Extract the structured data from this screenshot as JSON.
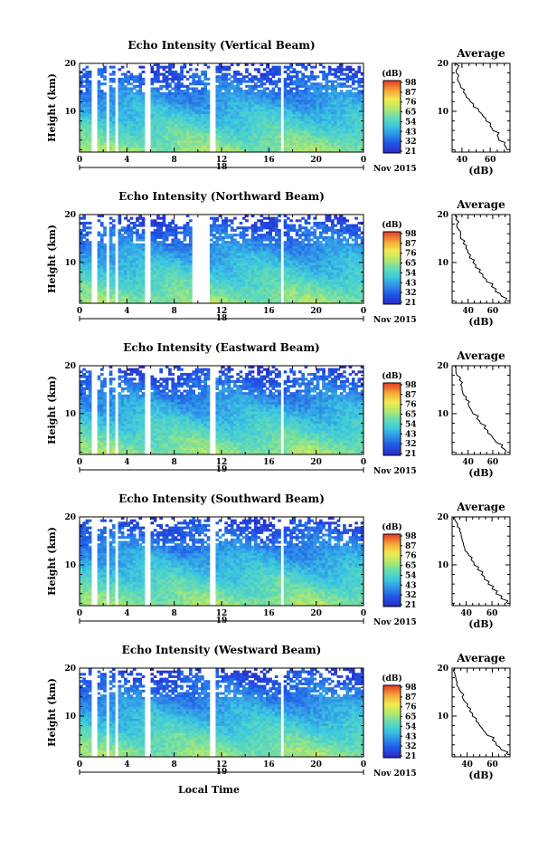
{
  "chart_data": [
    {
      "type": "heatmap",
      "title": "Echo Intensity (Vertical Beam)",
      "ylabel": "Height (km)",
      "xlim": [
        0,
        24
      ],
      "ylim": [
        1.5,
        20
      ],
      "x_ticks": [
        "0",
        "4",
        "8",
        "12",
        "16",
        "20",
        "0"
      ],
      "y_ticks": [
        "20",
        "10"
      ],
      "date_marker": "18",
      "date_label": "Nov 2015",
      "colorbar": {
        "unit": "(dB)",
        "ticks": [
          "98",
          "87",
          "76",
          "65",
          "54",
          "43",
          "32",
          "21"
        ]
      },
      "average_profile": {
        "title": "Average",
        "xlabel": "(dB)",
        "x_ticks": [
          "40",
          "60"
        ],
        "y_ticks": [
          "20",
          "10"
        ],
        "xlim": [
          33,
          74
        ],
        "ylim": [
          1.5,
          20
        ],
        "heights": [
          2,
          3,
          4,
          5,
          6,
          7,
          8,
          9,
          10,
          11,
          12,
          13,
          14,
          15,
          16,
          17,
          18,
          19,
          20
        ],
        "values": [
          72,
          70,
          66,
          65,
          62,
          60,
          57,
          55,
          52,
          48,
          46,
          43,
          41,
          39,
          38,
          37,
          36,
          37,
          35
        ]
      },
      "data_gaps_hours": [
        [
          1.0,
          1.4
        ],
        [
          2.2,
          2.6
        ],
        [
          3.0,
          3.3
        ],
        [
          5.5,
          5.9
        ],
        [
          10.9,
          11.4
        ],
        [
          16.9,
          17.3
        ]
      ]
    },
    {
      "type": "heatmap",
      "title": "Echo Intensity (Northward Beam)",
      "ylabel": "Height (km)",
      "xlim": [
        0,
        24
      ],
      "ylim": [
        1.5,
        20
      ],
      "x_ticks": [
        "0",
        "4",
        "8",
        "12",
        "16",
        "20",
        "0"
      ],
      "y_ticks": [
        "20",
        "10"
      ],
      "date_marker": "18",
      "date_label": "Nov 2015",
      "colorbar": {
        "unit": "(dB)",
        "ticks": [
          "98",
          "87",
          "76",
          "65",
          "54",
          "43",
          "32",
          "21"
        ]
      },
      "average_profile": {
        "title": "Average",
        "xlabel": "(dB)",
        "x_ticks": [
          "40",
          "60"
        ],
        "y_ticks": [
          "20",
          "10"
        ],
        "xlim": [
          27,
          74
        ],
        "ylim": [
          1.5,
          20
        ],
        "heights": [
          2,
          3,
          4,
          5,
          6,
          7,
          8,
          9,
          10,
          11,
          12,
          13,
          14,
          15,
          16,
          17,
          18,
          19,
          20
        ],
        "values": [
          71,
          67,
          62,
          59,
          55,
          52,
          49,
          46,
          44,
          41,
          40,
          38,
          36,
          34,
          34,
          32,
          31,
          30,
          29
        ]
      },
      "data_gaps_hours": [
        [
          1.0,
          1.4
        ],
        [
          2.2,
          2.6
        ],
        [
          3.0,
          3.3
        ],
        [
          5.5,
          5.9
        ],
        [
          9.5,
          10.9
        ],
        [
          16.9,
          17.3
        ]
      ]
    },
    {
      "type": "heatmap",
      "title": "Echo Intensity (Eastward Beam)",
      "ylabel": "Height (km)",
      "xlim": [
        0,
        24
      ],
      "ylim": [
        1.5,
        20
      ],
      "x_ticks": [
        "0",
        "4",
        "8",
        "12",
        "16",
        "20",
        "0"
      ],
      "y_ticks": [
        "20",
        "10"
      ],
      "date_marker": "19",
      "date_label": "Nov 2015",
      "colorbar": {
        "unit": "(dB)",
        "ticks": [
          "98",
          "87",
          "76",
          "65",
          "54",
          "43",
          "32",
          "21"
        ]
      },
      "average_profile": {
        "title": "Average",
        "xlabel": "(dB)",
        "x_ticks": [
          "40",
          "60"
        ],
        "y_ticks": [
          "20",
          "10"
        ],
        "xlim": [
          27,
          74
        ],
        "ylim": [
          1.5,
          20
        ],
        "heights": [
          2,
          3,
          4,
          5,
          6,
          7,
          8,
          9,
          10,
          11,
          12,
          13,
          14,
          15,
          16,
          17,
          18,
          19,
          20
        ],
        "values": [
          71,
          67,
          63,
          60,
          56,
          53,
          50,
          47,
          44,
          42,
          40,
          38,
          36,
          35,
          34,
          33,
          31,
          30,
          29
        ]
      },
      "data_gaps_hours": [
        [
          1.0,
          1.4
        ],
        [
          2.2,
          2.6
        ],
        [
          3.0,
          3.3
        ],
        [
          5.5,
          5.9
        ],
        [
          10.9,
          11.4
        ],
        [
          16.9,
          17.3
        ]
      ]
    },
    {
      "type": "heatmap",
      "title": "Echo Intensity (Southward Beam)",
      "ylabel": "Height (km)",
      "xlim": [
        0,
        24
      ],
      "ylim": [
        1.5,
        20
      ],
      "x_ticks": [
        "0",
        "4",
        "8",
        "12",
        "16",
        "20",
        "0"
      ],
      "y_ticks": [
        "20",
        "10"
      ],
      "date_marker": "19",
      "date_label": "Nov 2015",
      "colorbar": {
        "unit": "(dB)",
        "ticks": [
          "98",
          "87",
          "76",
          "65",
          "54",
          "43",
          "32",
          "21"
        ]
      },
      "average_profile": {
        "title": "Average",
        "xlabel": "(dB)",
        "x_ticks": [
          "40",
          "60"
        ],
        "y_ticks": [
          "20",
          "10"
        ],
        "xlim": [
          29,
          74
        ],
        "ylim": [
          1.5,
          20
        ],
        "heights": [
          2,
          3,
          4,
          5,
          6,
          7,
          8,
          9,
          10,
          11,
          12,
          13,
          14,
          15,
          16,
          17,
          18,
          19,
          20
        ],
        "values": [
          71,
          67,
          63,
          60,
          57,
          54,
          52,
          49,
          46,
          44,
          42,
          39,
          38,
          37,
          36,
          35,
          33,
          32,
          31
        ]
      },
      "data_gaps_hours": [
        [
          1.0,
          1.4
        ],
        [
          2.2,
          2.6
        ],
        [
          3.0,
          3.3
        ],
        [
          5.5,
          5.9
        ],
        [
          10.9,
          11.4
        ],
        [
          16.9,
          17.3
        ]
      ]
    },
    {
      "type": "heatmap",
      "title": "Echo Intensity (Westward Beam)",
      "ylabel": "Height (km)",
      "xlabel": "Local Time",
      "xlim": [
        0,
        24
      ],
      "ylim": [
        1.5,
        20
      ],
      "x_ticks": [
        "0",
        "4",
        "8",
        "12",
        "16",
        "20",
        "0"
      ],
      "y_ticks": [
        "20",
        "10"
      ],
      "date_marker": "19",
      "date_label": "Nov 2015",
      "colorbar": {
        "unit": "(dB)",
        "ticks": [
          "98",
          "87",
          "76",
          "65",
          "54",
          "43",
          "32",
          "21"
        ]
      },
      "average_profile": {
        "title": "Average",
        "xlabel": "(dB)",
        "x_ticks": [
          "40",
          "60"
        ],
        "y_ticks": [
          "20",
          "10"
        ],
        "xlim": [
          28,
          74
        ],
        "ylim": [
          1.5,
          20
        ],
        "heights": [
          2,
          3,
          4,
          5,
          6,
          7,
          8,
          9,
          10,
          11,
          12,
          13,
          14,
          15,
          16,
          17,
          18,
          19,
          20
        ],
        "values": [
          71,
          67,
          63,
          60,
          56,
          53,
          50,
          47,
          44,
          42,
          40,
          38,
          36,
          35,
          33,
          32,
          31,
          30,
          30
        ]
      },
      "data_gaps_hours": [
        [
          1.0,
          1.4
        ],
        [
          2.2,
          2.6
        ],
        [
          3.0,
          3.3
        ],
        [
          5.5,
          5.9
        ],
        [
          10.9,
          11.4
        ],
        [
          16.9,
          17.3
        ]
      ]
    }
  ],
  "colors": {
    "scale": [
      "#2b2bc8",
      "#1f55e6",
      "#2f8fe8",
      "#3cc8e0",
      "#68dcb0",
      "#b6e86a",
      "#f3ea4f",
      "#f6a636",
      "#e8462a"
    ]
  }
}
